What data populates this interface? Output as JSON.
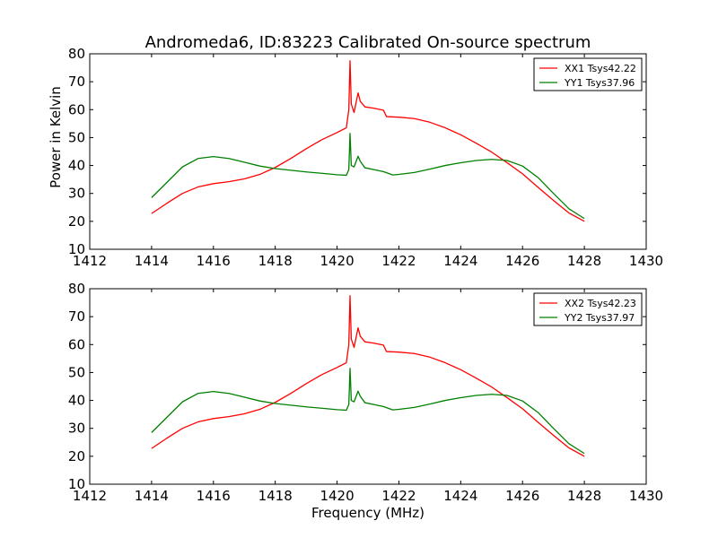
{
  "chart_data": {
    "type": "line",
    "title": "Andromeda6, ID:83223 Calibrated On-source spectrum",
    "xlabel": "Frequency (MHz)",
    "ylabel": "Power in Kelvin",
    "xlim": [
      1412,
      1430
    ],
    "ylim": [
      10,
      80
    ],
    "xticks": [
      1412,
      1414,
      1416,
      1418,
      1420,
      1422,
      1424,
      1426,
      1428,
      1430
    ],
    "yticks": [
      10,
      20,
      30,
      40,
      50,
      60,
      70,
      80
    ],
    "grid": false,
    "legend_position": "top-right",
    "panels": [
      {
        "series": [
          {
            "name": "XX1 Tsys42.22",
            "color": "#ff0000",
            "x": [
              1414.0,
              1414.5,
              1415.0,
              1415.5,
              1416.0,
              1416.5,
              1417.0,
              1417.5,
              1418.0,
              1418.5,
              1419.0,
              1419.5,
              1420.0,
              1420.3,
              1420.38,
              1420.42,
              1420.46,
              1420.55,
              1420.68,
              1420.75,
              1420.9,
              1421.2,
              1421.5,
              1421.6,
              1422.0,
              1422.5,
              1423.0,
              1423.5,
              1424.0,
              1424.5,
              1425.0,
              1425.5,
              1426.0,
              1426.5,
              1427.0,
              1427.5,
              1428.0
            ],
            "y": [
              22.8,
              26.5,
              30.0,
              32.3,
              33.5,
              34.2,
              35.2,
              36.8,
              39.3,
              42.5,
              46.0,
              49.2,
              51.8,
              53.5,
              60.0,
              77.5,
              62.0,
              59.0,
              66.0,
              63.0,
              61.0,
              60.5,
              59.8,
              57.5,
              57.3,
              56.8,
              55.5,
              53.5,
              51.0,
              48.0,
              44.8,
              41.0,
              37.0,
              32.2,
              27.5,
              23.0,
              20.0
            ]
          },
          {
            "name": "YY1 Tsys37.96",
            "color": "#008000",
            "x": [
              1414.0,
              1414.5,
              1415.0,
              1415.5,
              1416.0,
              1416.5,
              1417.0,
              1417.5,
              1418.0,
              1418.5,
              1419.0,
              1419.5,
              1420.0,
              1420.3,
              1420.38,
              1420.42,
              1420.46,
              1420.55,
              1420.68,
              1420.75,
              1420.9,
              1421.2,
              1421.5,
              1421.8,
              1422.0,
              1422.5,
              1423.0,
              1423.5,
              1424.0,
              1424.5,
              1425.0,
              1425.5,
              1426.0,
              1426.5,
              1427.0,
              1427.5,
              1428.0
            ],
            "y": [
              28.5,
              34.0,
              39.5,
              42.5,
              43.2,
              42.5,
              41.2,
              39.8,
              38.9,
              38.3,
              37.7,
              37.2,
              36.7,
              36.5,
              38.5,
              51.5,
              40.0,
              39.5,
              43.3,
              41.5,
              39.2,
              38.5,
              37.8,
              36.6,
              36.8,
              37.5,
              38.7,
              40.0,
              41.0,
              41.8,
              42.2,
              41.8,
              39.8,
              35.7,
              30.0,
              24.5,
              21.0
            ]
          }
        ]
      },
      {
        "series": [
          {
            "name": "XX2 Tsys42.23",
            "color": "#ff0000",
            "x": [
              1414.0,
              1414.5,
              1415.0,
              1415.5,
              1416.0,
              1416.5,
              1417.0,
              1417.5,
              1418.0,
              1418.5,
              1419.0,
              1419.5,
              1420.0,
              1420.3,
              1420.38,
              1420.42,
              1420.46,
              1420.55,
              1420.68,
              1420.75,
              1420.9,
              1421.2,
              1421.5,
              1421.6,
              1422.0,
              1422.5,
              1423.0,
              1423.5,
              1424.0,
              1424.5,
              1425.0,
              1425.5,
              1426.0,
              1426.5,
              1427.0,
              1427.5,
              1428.0
            ],
            "y": [
              22.8,
              26.5,
              30.0,
              32.3,
              33.5,
              34.2,
              35.2,
              36.8,
              39.3,
              42.5,
              46.0,
              49.2,
              51.8,
              53.5,
              60.0,
              77.5,
              62.0,
              59.0,
              66.0,
              63.0,
              61.0,
              60.5,
              59.8,
              57.5,
              57.3,
              56.8,
              55.5,
              53.5,
              51.0,
              48.0,
              44.8,
              41.0,
              37.0,
              32.2,
              27.5,
              23.0,
              20.0
            ]
          },
          {
            "name": "YY2 Tsys37.97",
            "color": "#008000",
            "x": [
              1414.0,
              1414.5,
              1415.0,
              1415.5,
              1416.0,
              1416.5,
              1417.0,
              1417.5,
              1418.0,
              1418.5,
              1419.0,
              1419.5,
              1420.0,
              1420.3,
              1420.38,
              1420.42,
              1420.46,
              1420.55,
              1420.68,
              1420.75,
              1420.9,
              1421.2,
              1421.5,
              1421.8,
              1422.0,
              1422.5,
              1423.0,
              1423.5,
              1424.0,
              1424.5,
              1425.0,
              1425.5,
              1426.0,
              1426.5,
              1427.0,
              1427.5,
              1428.0
            ],
            "y": [
              28.5,
              34.0,
              39.5,
              42.5,
              43.2,
              42.5,
              41.2,
              39.8,
              38.9,
              38.3,
              37.7,
              37.2,
              36.7,
              36.5,
              38.5,
              51.5,
              40.0,
              39.5,
              43.3,
              41.5,
              39.2,
              38.5,
              37.8,
              36.6,
              36.8,
              37.5,
              38.7,
              40.0,
              41.0,
              41.8,
              42.2,
              41.8,
              39.8,
              35.7,
              30.0,
              24.5,
              21.0
            ]
          }
        ]
      }
    ]
  }
}
